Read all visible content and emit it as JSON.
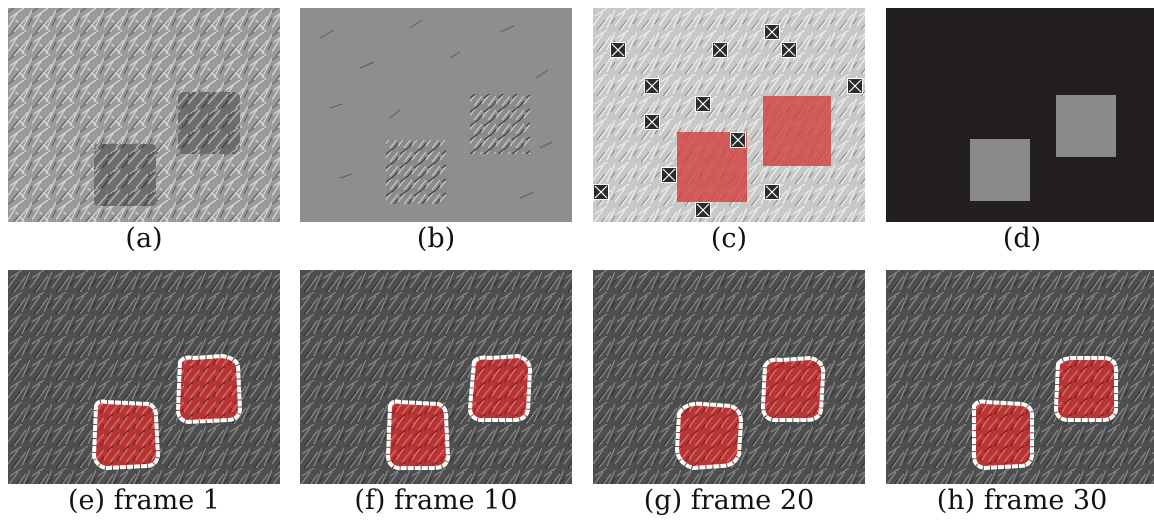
{
  "figure": {
    "panels": [
      {
        "id": "a",
        "caption": "(a)"
      },
      {
        "id": "b",
        "caption": "(b)"
      },
      {
        "id": "c",
        "caption": "(c)"
      },
      {
        "id": "d",
        "caption": "(d)"
      },
      {
        "id": "e",
        "caption": "(e) frame 1"
      },
      {
        "id": "f",
        "caption": "(f) frame 10"
      },
      {
        "id": "g",
        "caption": "(g) frame 20"
      },
      {
        "id": "h",
        "caption": "(h) frame 30"
      }
    ]
  },
  "colors": {
    "grass_light": "#b9b9b9",
    "grass_dark": "#5a5a5a",
    "diff_gray": "#8e8e8e",
    "mask_black": "#231f20",
    "mask_gray": "#8a8a8a",
    "red_overlay": "#d23b3b",
    "marker_dark": "#2a2a2a",
    "contour": "#ffffff"
  },
  "icons": [
    "crossed-box-icon"
  ]
}
